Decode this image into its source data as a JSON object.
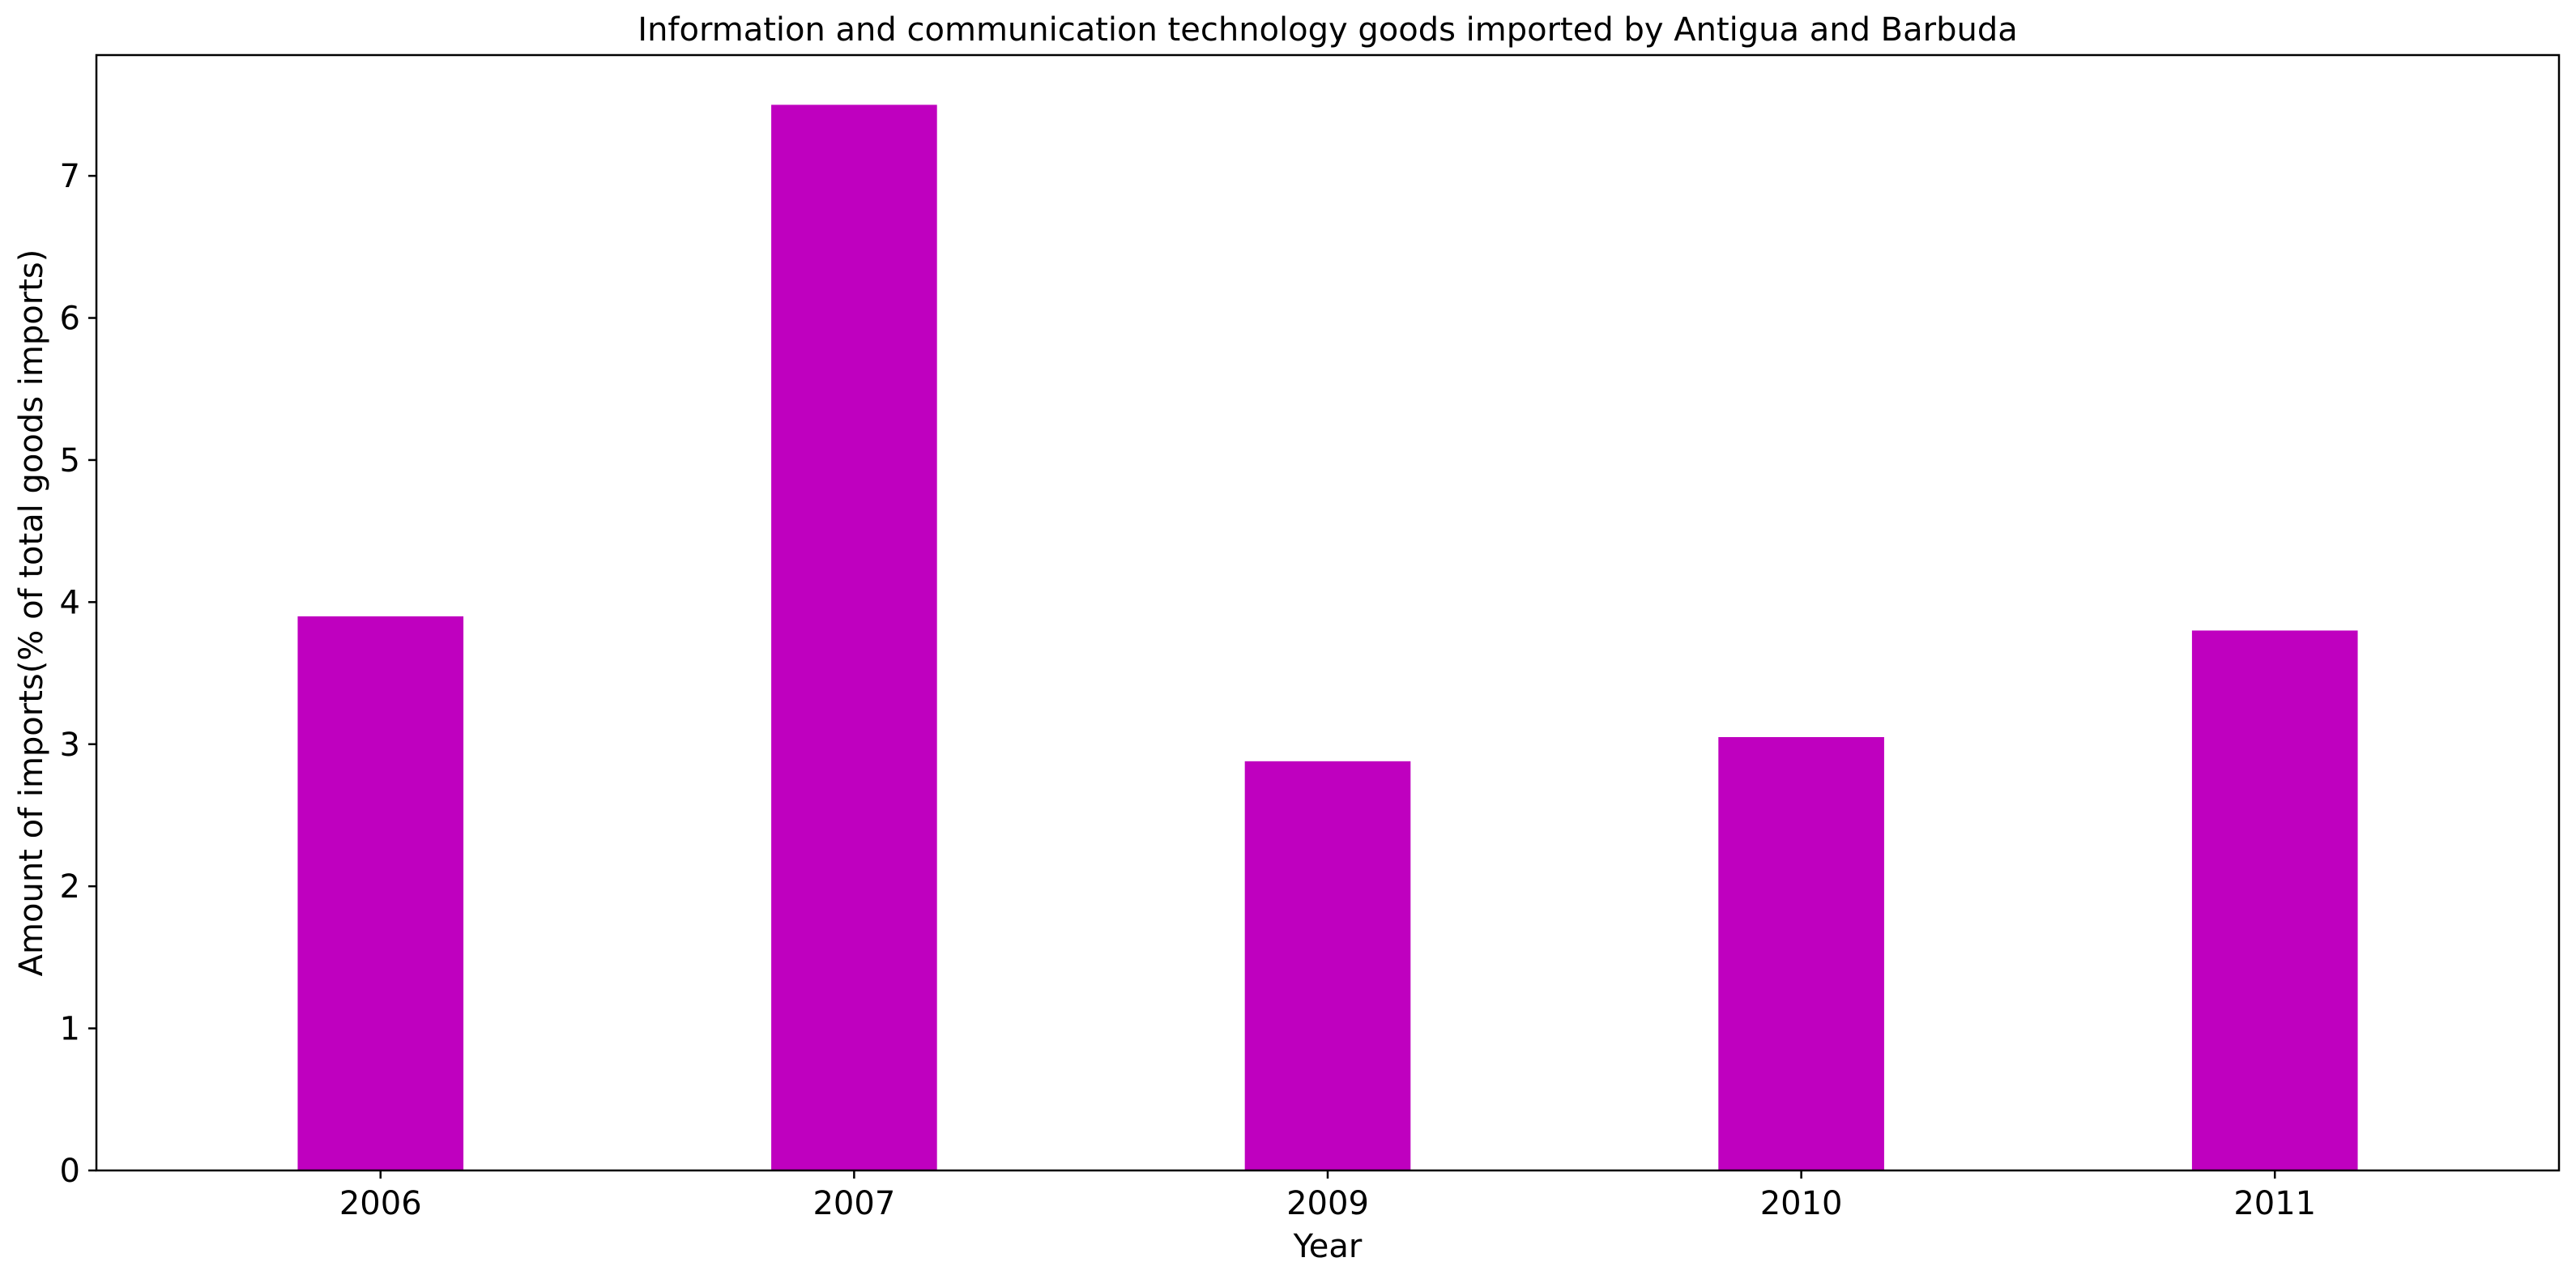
{
  "chart_data": {
    "type": "bar",
    "title": "Information and communication technology goods imported by Antigua and Barbuda",
    "xlabel": "Year",
    "ylabel": "Amount of imports(% of total goods imports)",
    "categories": [
      "2006",
      "2007",
      "2009",
      "2010",
      "2011"
    ],
    "values": [
      3.9,
      7.5,
      2.88,
      3.05,
      3.8
    ],
    "ylim": [
      0,
      7.85
    ],
    "yticks": [
      0,
      1,
      2,
      3,
      4,
      5,
      6,
      7
    ],
    "bar_color": "#bf00bf",
    "grid": false,
    "legend": false
  }
}
